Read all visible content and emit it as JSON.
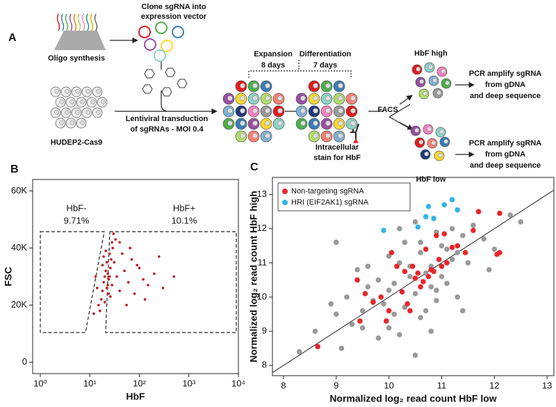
{
  "panel_a": {
    "panel": "A",
    "clone": [
      "Clone sgRNA into",
      "expression vector"
    ],
    "oligo": "Oligo synthesis",
    "cells": "HUDEP2-Cas9",
    "transduction": [
      "Lentiviral transduction",
      "of sgRNAs - MOI 0.4"
    ],
    "expansion": [
      "Expansion",
      "8 days"
    ],
    "differentiation": [
      "Differentiation",
      "7 days"
    ],
    "stain": [
      "Intracellular",
      "stain for HbF"
    ],
    "sort": "FACS",
    "high": "HbF high",
    "low": "HbF low",
    "pcr_high": [
      "PCR amplify sgRNA",
      "from gDNA",
      "and deep sequence"
    ],
    "pcr_low": [
      "PCR amplify sgRNA",
      "from gDNA",
      "and deep sequence"
    ]
  },
  "chart_data": [
    {
      "type": "scatter",
      "panel": "B",
      "xlabel": "HbF",
      "ylabel": "FSC",
      "xlog": true,
      "xlim": [
        0.7,
        10000
      ],
      "ylim": [
        -4000,
        64000
      ],
      "xticks": [
        {
          "value": 1,
          "label": "10⁰"
        },
        {
          "value": 10,
          "label": "10¹"
        },
        {
          "value": 100,
          "label": "10²"
        },
        {
          "value": 1000,
          "label": "10³"
        },
        {
          "value": 10000,
          "label": "10⁴"
        }
      ],
      "yticks": [
        0,
        {
          "value": 20000,
          "label": "20K"
        },
        {
          "value": 40000,
          "label": "40K"
        },
        {
          "value": 60000,
          "label": "60K"
        }
      ],
      "annotations": [
        "HbF-",
        "9.71%",
        "HbF+",
        "10.1%"
      ],
      "color": "#c0141a",
      "x": [
        15,
        18,
        20,
        22,
        25,
        28,
        30,
        17,
        19,
        21,
        23,
        26,
        29,
        16,
        24,
        27,
        20,
        22,
        25,
        18,
        21,
        24,
        26,
        23,
        19,
        28,
        31,
        35,
        40,
        45,
        50,
        60,
        70,
        80,
        100,
        120,
        150,
        200,
        300,
        500,
        40,
        55,
        65,
        90,
        130,
        250,
        12,
        14,
        13,
        33
      ],
      "y": [
        20000,
        25000,
        30000,
        35000,
        38000,
        42000,
        45000,
        22000,
        28000,
        32000,
        27000,
        33000,
        40000,
        18000,
        24000,
        36000,
        21000,
        26000,
        30000,
        34000,
        39000,
        29000,
        23000,
        31000,
        37000,
        27000,
        35000,
        30000,
        25000,
        38000,
        32000,
        28000,
        36000,
        24000,
        33000,
        29000,
        27000,
        31000,
        26000,
        30000,
        42000,
        20000,
        40000,
        34000,
        22000,
        37000,
        17000,
        26000,
        30000,
        43000
      ]
    },
    {
      "type": "scatter",
      "panel": "C",
      "xlabel": "Normalized log₂ read count HbF low",
      "ylabel": "Normalized log₂ read count HbF high",
      "xlim": [
        7.79,
        13.13
      ],
      "ylim": [
        7.7,
        13.5
      ],
      "xticks": [
        8,
        9,
        10,
        11,
        12,
        13
      ],
      "yticks": [
        8,
        9,
        10,
        11,
        12,
        13
      ],
      "identity_line": true,
      "legend": "upper left",
      "series": [
        {
          "color": "#999999",
          "x": [
            9.2,
            9.5,
            9.8,
            10.0,
            10.2,
            10.4,
            10.6,
            10.8,
            11.0,
            11.2,
            11.4,
            9.6,
            9.9,
            10.1,
            10.3,
            10.5,
            10.7,
            10.9,
            11.1,
            11.3,
            9.0,
            9.4,
            9.7,
            10.0,
            10.3,
            10.6,
            10.9,
            11.2,
            11.5,
            11.8,
            8.6,
            8.9,
            9.3,
            9.6,
            10.1,
            10.4,
            10.7,
            11.0,
            11.3,
            11.6,
            10.2,
            10.5,
            10.8,
            11.1,
            9.8,
            10.0,
            10.6,
            10.9,
            12.0,
            12.3,
            8.3,
            9.1,
            9.5,
            10.2,
            10.8,
            11.4,
            11.9,
            12.5,
            9.0,
            10.5
          ],
          "y": [
            10.0,
            9.6,
            10.5,
            10.2,
            11.0,
            10.6,
            11.3,
            10.9,
            11.5,
            11.1,
            11.8,
            10.9,
            9.8,
            10.4,
            11.6,
            10.1,
            10.7,
            11.9,
            10.4,
            11.3,
            9.5,
            10.8,
            9.9,
            11.2,
            9.7,
            11.6,
            10.2,
            12.0,
            11.0,
            11.7,
            9.0,
            9.8,
            9.2,
            10.3,
            9.5,
            10.9,
            9.6,
            10.6,
            10.0,
            12.1,
            12.0,
            12.2,
            10.3,
            11.4,
            8.8,
            9.1,
            9.4,
            9.9,
            11.4,
            12.4,
            8.4,
            8.5,
            9.1,
            8.9,
            9.0,
            9.6,
            10.8,
            12.2,
            11.6,
            8.3
          ]
        },
        {
          "name": "Non-targeting sgRNA",
          "color": "#e8262a",
          "x": [
            8.65,
            9.4,
            9.45,
            9.55,
            9.7,
            9.95,
            10.0,
            10.05,
            10.15,
            10.25,
            10.3,
            10.4,
            10.45,
            10.5,
            10.55,
            10.6,
            10.65,
            10.7,
            10.75,
            10.8,
            10.85,
            10.9,
            10.95,
            11.0,
            11.05,
            11.1,
            11.2,
            11.3,
            11.45,
            11.6,
            11.7,
            12.05,
            12.1,
            12.1,
            10.35,
            9.85
          ],
          "y": [
            8.55,
            10.5,
            9.3,
            10.1,
            9.85,
            9.3,
            9.6,
            11.3,
            10.9,
            10.15,
            10.75,
            9.6,
            10.9,
            10.55,
            10.7,
            10.3,
            10.45,
            11.4,
            10.6,
            10.8,
            10.75,
            11.8,
            11.1,
            10.9,
            11.85,
            11.0,
            11.45,
            11.5,
            11.3,
            11.95,
            12.5,
            11.25,
            11.3,
            12.45,
            9.8,
            10.0
          ]
        },
        {
          "name": "HRI (EIF2AK1) sgRNA",
          "color": "#33b5e8",
          "x": [
            9.9,
            10.55,
            10.7,
            10.75,
            10.85,
            11.05,
            11.2,
            11.3
          ],
          "y": [
            11.95,
            12.05,
            12.35,
            12.65,
            12.3,
            12.7,
            12.85,
            12.55
          ]
        }
      ]
    }
  ]
}
